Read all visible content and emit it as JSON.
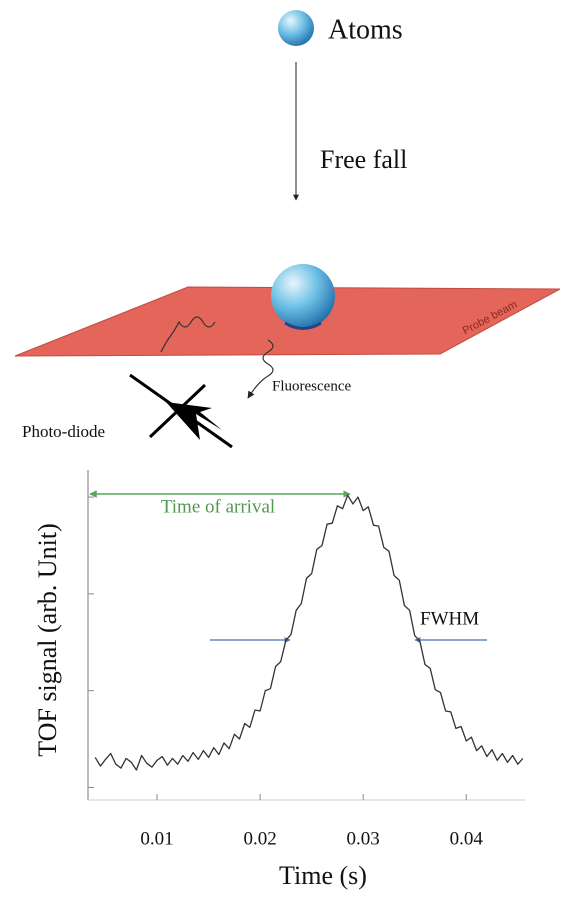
{
  "labels": {
    "atoms": "Atoms",
    "free_fall": "Free fall",
    "probe_beam": "Probe beam",
    "fluorescence": "Fluorescence",
    "photodiode": "Photo-diode"
  },
  "chart_data": {
    "type": "line",
    "xlabel": "Time (s)",
    "ylabel": "TOF signal (arb. Unit)",
    "annotations": {
      "time_of_arrival": "Time of arrival",
      "fwhm": "FWHM"
    },
    "xlim": [
      0.0033,
      0.0457
    ],
    "xticks": [
      0.01,
      0.02,
      0.03,
      0.04
    ],
    "ylim": [
      -0.13,
      3.28
    ],
    "yticks": [
      0,
      1,
      2,
      3
    ],
    "series": [
      {
        "color": "#333333",
        "x": [
          0.004,
          0.0045,
          0.005,
          0.0055,
          0.006,
          0.0065,
          0.007,
          0.0075,
          0.008,
          0.0085,
          0.009,
          0.0095,
          0.01,
          0.0105,
          0.011,
          0.0115,
          0.012,
          0.0125,
          0.013,
          0.0135,
          0.014,
          0.0145,
          0.015,
          0.0155,
          0.016,
          0.0165,
          0.017,
          0.0175,
          0.018,
          0.0185,
          0.019,
          0.0195,
          0.02,
          0.0205,
          0.021,
          0.0215,
          0.022,
          0.0225,
          0.023,
          0.0235,
          0.024,
          0.0245,
          0.025,
          0.0255,
          0.026,
          0.0265,
          0.027,
          0.0275,
          0.028,
          0.0285,
          0.029,
          0.0295,
          0.03,
          0.0305,
          0.031,
          0.0315,
          0.032,
          0.0325,
          0.033,
          0.0335,
          0.034,
          0.0345,
          0.035,
          0.0355,
          0.036,
          0.0365,
          0.037,
          0.0375,
          0.038,
          0.0385,
          0.039,
          0.0395,
          0.04,
          0.0405,
          0.041,
          0.0415,
          0.042,
          0.0425,
          0.043,
          0.0435,
          0.044,
          0.0445,
          0.045,
          0.0455
        ],
        "values": [
          0.31,
          0.22,
          0.29,
          0.35,
          0.24,
          0.2,
          0.3,
          0.26,
          0.18,
          0.33,
          0.25,
          0.21,
          0.28,
          0.32,
          0.23,
          0.3,
          0.24,
          0.33,
          0.27,
          0.36,
          0.29,
          0.38,
          0.31,
          0.41,
          0.34,
          0.46,
          0.4,
          0.55,
          0.5,
          0.66,
          0.62,
          0.8,
          0.79,
          1.0,
          1.02,
          1.25,
          1.3,
          1.52,
          1.58,
          1.83,
          1.9,
          2.16,
          2.21,
          2.46,
          2.5,
          2.72,
          2.73,
          2.91,
          2.88,
          3.02,
          2.93,
          3.0,
          2.86,
          2.9,
          2.71,
          2.7,
          2.48,
          2.44,
          2.19,
          2.14,
          1.88,
          1.83,
          1.57,
          1.51,
          1.27,
          1.23,
          1.01,
          0.98,
          0.79,
          0.78,
          0.61,
          0.63,
          0.48,
          0.52,
          0.38,
          0.43,
          0.32,
          0.39,
          0.28,
          0.35,
          0.26,
          0.33,
          0.24,
          0.3
        ]
      }
    ]
  }
}
